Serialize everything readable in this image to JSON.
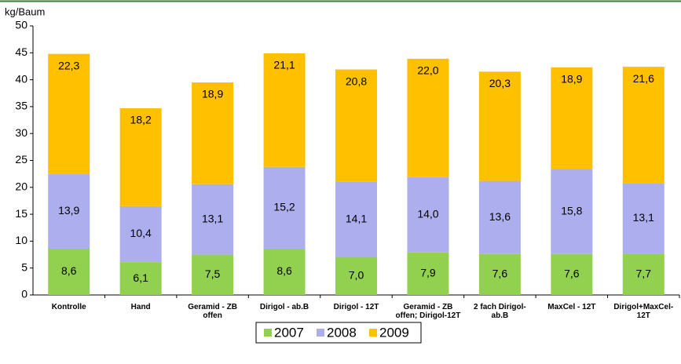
{
  "chart_data": {
    "type": "stacked_bar",
    "y_label": "kg/Baum",
    "categories": [
      "Kontrolle",
      "Hand",
      "Geramid - ZB offen",
      "Dirigol - ab.B",
      "Dirigol - 12T",
      "Geramid - ZB offen; Dirigol-12T",
      "2 fach Dirigol-ab.B",
      "MaxCel - 12T",
      "Dirigol+MaxCel-12T"
    ],
    "series": [
      {
        "name": "2007",
        "color": "#92d050",
        "values": [
          8.6,
          6.1,
          7.5,
          8.6,
          7.0,
          7.9,
          7.6,
          7.6,
          7.7
        ],
        "value_labels": [
          "8,6",
          "6,1",
          "7,5",
          "8,6",
          "7,0",
          "7,9",
          "7,6",
          "7,6",
          "7,7"
        ]
      },
      {
        "name": "2008",
        "color": "#adaeee",
        "values": [
          13.9,
          10.4,
          13.1,
          15.2,
          14.1,
          14.0,
          13.6,
          15.8,
          13.1
        ],
        "value_labels": [
          "13,9",
          "10,4",
          "13,1",
          "15,2",
          "14,1",
          "14,0",
          "13,6",
          "15,8",
          "13,1"
        ]
      },
      {
        "name": "2009",
        "color": "#ffc000",
        "values": [
          22.3,
          18.2,
          18.9,
          21.1,
          20.8,
          22.0,
          20.3,
          18.9,
          21.6
        ],
        "value_labels": [
          "22,3",
          "18,2",
          "18,9",
          "21,1",
          "20,8",
          "22,0",
          "20,3",
          "18,9",
          "21,6"
        ]
      }
    ],
    "ylim": [
      0,
      50
    ],
    "yticks": [
      0,
      5,
      10,
      15,
      20,
      25,
      30,
      35,
      40,
      45,
      50
    ],
    "grid": false
  }
}
